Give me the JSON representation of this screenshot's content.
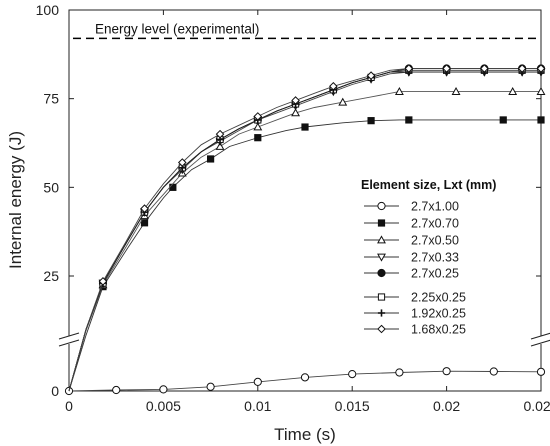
{
  "chart_data": {
    "type": "line",
    "xlabel": "Time (s)",
    "ylabel": "Internal energy (J)",
    "xlim": [
      0,
      0.025
    ],
    "ylim": [
      0,
      100
    ],
    "axis_break": {
      "lower_max": 8,
      "upper_min": 20
    },
    "x_ticks": [
      {
        "value": 0,
        "label": "0"
      },
      {
        "value": 0.005,
        "label": "0.005"
      },
      {
        "value": 0.01,
        "label": "0.01"
      },
      {
        "value": 0.015,
        "label": "0.015"
      },
      {
        "value": 0.02,
        "label": "0.02"
      },
      {
        "value": 0.025,
        "label": "0.025"
      }
    ],
    "y_ticks": [
      {
        "value": 0,
        "label": "0"
      },
      {
        "value": 25,
        "label": "25"
      },
      {
        "value": 50,
        "label": "50"
      },
      {
        "value": 75,
        "label": "75"
      },
      {
        "value": 100,
        "label": "100"
      }
    ],
    "reference_line": {
      "label": "Energy level (experimental)",
      "y": 92,
      "style": "dashed"
    },
    "legend": {
      "title": "Element size, Lxt (mm)",
      "placement": "center-right"
    },
    "series": [
      {
        "name": "2.7x1.00",
        "marker": "circle-open",
        "x": [
          0,
          0.0025,
          0.005,
          0.0075,
          0.01,
          0.0125,
          0.015,
          0.0175,
          0.02,
          0.0225,
          0.025
        ],
        "y": [
          0,
          0.3,
          0.5,
          1.3,
          2.8,
          4.2,
          5.2,
          5.7,
          6.1,
          6.0,
          5.9
        ]
      },
      {
        "name": "2.7x0.70",
        "marker": "square-filled",
        "x": [
          0,
          0.0009,
          0.0018,
          0.003,
          0.004,
          0.005,
          0.0055,
          0.0065,
          0.0075,
          0.0085,
          0.01,
          0.0115,
          0.0125,
          0.0145,
          0.016,
          0.0175,
          0.018,
          0.0205,
          0.023,
          0.025
        ],
        "y": [
          0,
          13,
          22,
          32,
          40,
          47,
          50,
          55,
          58,
          61.5,
          64,
          66,
          67,
          68.2,
          68.8,
          69,
          69,
          69,
          69,
          69
        ]
      },
      {
        "name": "2.7x0.50",
        "marker": "triangle-open",
        "x": [
          0,
          0.0009,
          0.0018,
          0.003,
          0.004,
          0.005,
          0.006,
          0.007,
          0.008,
          0.009,
          0.01,
          0.011,
          0.012,
          0.013,
          0.0145,
          0.016,
          0.0175,
          0.019,
          0.0205,
          0.022,
          0.0235,
          0.025
        ],
        "y": [
          0,
          13.8,
          22.5,
          33,
          42,
          48,
          54,
          58.5,
          61.5,
          65,
          67,
          69,
          71,
          72.5,
          74,
          75.5,
          77,
          77,
          77,
          77,
          77,
          77
        ]
      },
      {
        "name": "2.7x0.33",
        "marker": "triangle-down-open",
        "x": [
          0,
          0.0009,
          0.0018,
          0.003,
          0.004,
          0.005,
          0.006,
          0.007,
          0.008,
          0.009,
          0.01,
          0.011,
          0.012,
          0.013,
          0.014,
          0.015,
          0.016,
          0.017,
          0.018,
          0.019,
          0.02,
          0.021,
          0.022,
          0.023,
          0.024,
          0.025
        ],
        "y": [
          0,
          14,
          23,
          34,
          43,
          50,
          55,
          60,
          63,
          66,
          69,
          71,
          73,
          75,
          77,
          79,
          80.5,
          82,
          82.5,
          82.5,
          82.5,
          82.5,
          82.5,
          82.5,
          82.5,
          82.5
        ]
      },
      {
        "name": "2.7x0.25",
        "marker": "circle-filled",
        "x": [
          0,
          0.0009,
          0.0018,
          0.003,
          0.004,
          0.005,
          0.006,
          0.007,
          0.008,
          0.009,
          0.01,
          0.011,
          0.012,
          0.013,
          0.014,
          0.015,
          0.016,
          0.017,
          0.018,
          0.019,
          0.02,
          0.021,
          0.022,
          0.023,
          0.024,
          0.025
        ],
        "y": [
          0,
          14,
          23,
          34,
          43,
          50,
          55.5,
          60,
          63.5,
          66.5,
          69,
          71.5,
          73.5,
          75.5,
          77.5,
          79.5,
          81,
          82.5,
          83.5,
          83.5,
          83.5,
          83.5,
          83.5,
          83.5,
          83.5,
          83.5
        ]
      },
      {
        "name": "2.25x0.25",
        "marker": "square-open",
        "x": [
          0,
          0.0009,
          0.0018,
          0.003,
          0.004,
          0.005,
          0.006,
          0.007,
          0.008,
          0.009,
          0.01,
          0.011,
          0.012,
          0.013,
          0.014,
          0.015,
          0.016,
          0.017,
          0.018,
          0.019,
          0.02,
          0.021,
          0.022,
          0.023,
          0.024,
          0.025
        ],
        "y": [
          0,
          14,
          23,
          34,
          43,
          50,
          55.5,
          60,
          63.5,
          66.5,
          69,
          71.5,
          73.5,
          75.5,
          77.5,
          79.5,
          81,
          82.5,
          83,
          83,
          83,
          83,
          83,
          83,
          83,
          83
        ]
      },
      {
        "name": "1.92x0.25",
        "marker": "plus",
        "x": [
          0,
          0.0009,
          0.0018,
          0.003,
          0.004,
          0.005,
          0.006,
          0.007,
          0.008,
          0.009,
          0.01,
          0.011,
          0.012,
          0.013,
          0.014,
          0.015,
          0.016,
          0.017,
          0.018,
          0.019,
          0.02,
          0.021,
          0.022,
          0.023,
          0.024,
          0.025
        ],
        "y": [
          0,
          14,
          23,
          34,
          43,
          50,
          55.5,
          60,
          63.5,
          66.5,
          69,
          71.5,
          73.5,
          75.5,
          77.5,
          79.5,
          81,
          82.5,
          82.5,
          82.5,
          82.5,
          82.5,
          82.5,
          82.5,
          82.5,
          82.5
        ]
      },
      {
        "name": "1.68x0.25",
        "marker": "diamond-open",
        "x": [
          0,
          0.0009,
          0.0018,
          0.003,
          0.004,
          0.005,
          0.006,
          0.007,
          0.008,
          0.009,
          0.01,
          0.011,
          0.012,
          0.013,
          0.014,
          0.015,
          0.016,
          0.017,
          0.018,
          0.019,
          0.02,
          0.021,
          0.022,
          0.023,
          0.024,
          0.025
        ],
        "y": [
          0,
          14,
          23.5,
          34.5,
          44,
          51,
          57,
          62,
          65,
          67.5,
          70,
          72.5,
          74.5,
          76.5,
          78.5,
          80,
          81.5,
          83,
          83.5,
          83.5,
          83.5,
          83.5,
          83.5,
          83.5,
          83.5,
          83.5
        ]
      }
    ]
  }
}
